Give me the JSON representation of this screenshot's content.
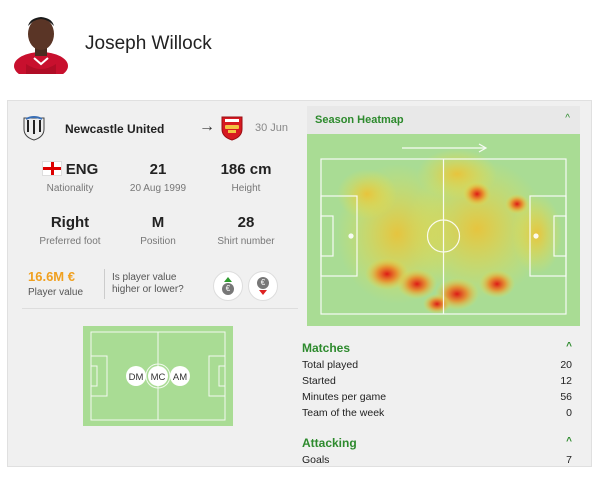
{
  "player": {
    "name": "Joseph Willock"
  },
  "transfer": {
    "from_club": "Newcastle United",
    "date": "30 Jun"
  },
  "stats": {
    "nationality_value": "ENG",
    "nationality_label": "Nationality",
    "age_value": "21",
    "age_label": "20 Aug 1999",
    "height_value": "186 cm",
    "height_label": "Height",
    "foot_value": "Right",
    "foot_label": "Preferred foot",
    "position_value": "M",
    "position_label": "Position",
    "shirt_value": "28",
    "shirt_label": "Shirt number"
  },
  "market": {
    "value": "16.6M €",
    "value_label": "Player value",
    "question": "Is player value higher or lower?",
    "coin_symbol": "€"
  },
  "positions": [
    "DM",
    "MC",
    "AM"
  ],
  "heatmap": {
    "title": "Season Heatmap",
    "chevron": "^"
  },
  "matches": {
    "title": "Matches",
    "chevron": "^",
    "rows": [
      {
        "label": "Total played",
        "value": "20"
      },
      {
        "label": "Started",
        "value": "12"
      },
      {
        "label": "Minutes per game",
        "value": "56"
      },
      {
        "label": "Team of the week",
        "value": "0"
      }
    ]
  },
  "attacking": {
    "title": "Attacking",
    "chevron": "^",
    "rows": [
      {
        "label": "Goals",
        "value": "7"
      }
    ]
  },
  "colors": {
    "accent_green": "#2d8a2d",
    "value_orange": "#f0a020",
    "pitch_green": "#a9dc94"
  }
}
